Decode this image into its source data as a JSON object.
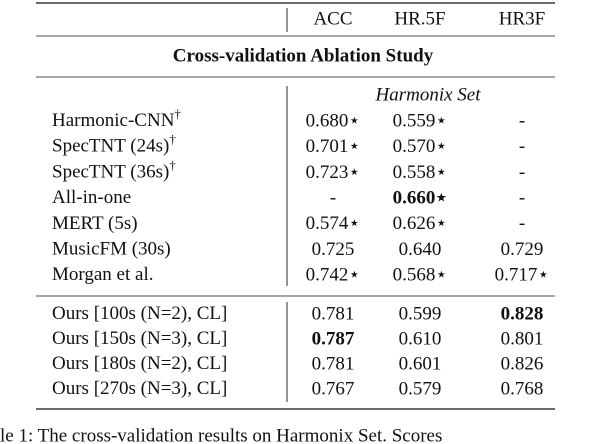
{
  "table": {
    "columns": [
      "ACC",
      "HR.5F",
      "HR3F"
    ],
    "section_title": "Cross-validation Ablation Study",
    "dataset": "Harmonix Set",
    "groups": [
      {
        "rows": [
          {
            "label": "Harmonic-CNN",
            "label_sup": "†",
            "cells": [
              "0.680⋆",
              "0.559⋆",
              "-"
            ],
            "bold": []
          },
          {
            "label": "SpecTNT (24s)",
            "label_sup": "†",
            "cells": [
              "0.701⋆",
              "0.570⋆",
              "-"
            ],
            "bold": []
          },
          {
            "label": "SpecTNT (36s)",
            "label_sup": "†",
            "cells": [
              "0.723⋆",
              "0.558⋆",
              "-"
            ],
            "bold": []
          },
          {
            "label": "All-in-one",
            "cells": [
              "-",
              "0.660⋆",
              "-"
            ],
            "bold": [
              1
            ]
          },
          {
            "label": "MERT (5s)",
            "cells": [
              "0.574⋆",
              "0.626⋆",
              "-"
            ],
            "bold": []
          },
          {
            "label": "MusicFM (30s)",
            "cells": [
              "0.725",
              "0.640",
              "0.729"
            ],
            "bold": []
          },
          {
            "label": "Morgan et al.",
            "cells": [
              "0.742⋆",
              "0.568⋆",
              "0.717⋆"
            ],
            "bold": []
          }
        ]
      },
      {
        "rows": [
          {
            "label": "Ours [100s (N=2), CL]",
            "cells": [
              "0.781",
              "0.599",
              "0.828"
            ],
            "bold": [
              2
            ]
          },
          {
            "label": "Ours [150s (N=3), CL]",
            "cells": [
              "0.787",
              "0.610",
              "0.801"
            ],
            "bold": [
              0
            ]
          },
          {
            "label": "Ours [180s (N=2), CL]",
            "cells": [
              "0.781",
              "0.601",
              "0.826"
            ],
            "bold": []
          },
          {
            "label": "Ours [270s (N=3), CL]",
            "cells": [
              "0.767",
              "0.579",
              "0.768"
            ],
            "bold": []
          }
        ]
      }
    ]
  },
  "caption": "le 1: The cross-validation results on Harmonix Set. Scores"
}
